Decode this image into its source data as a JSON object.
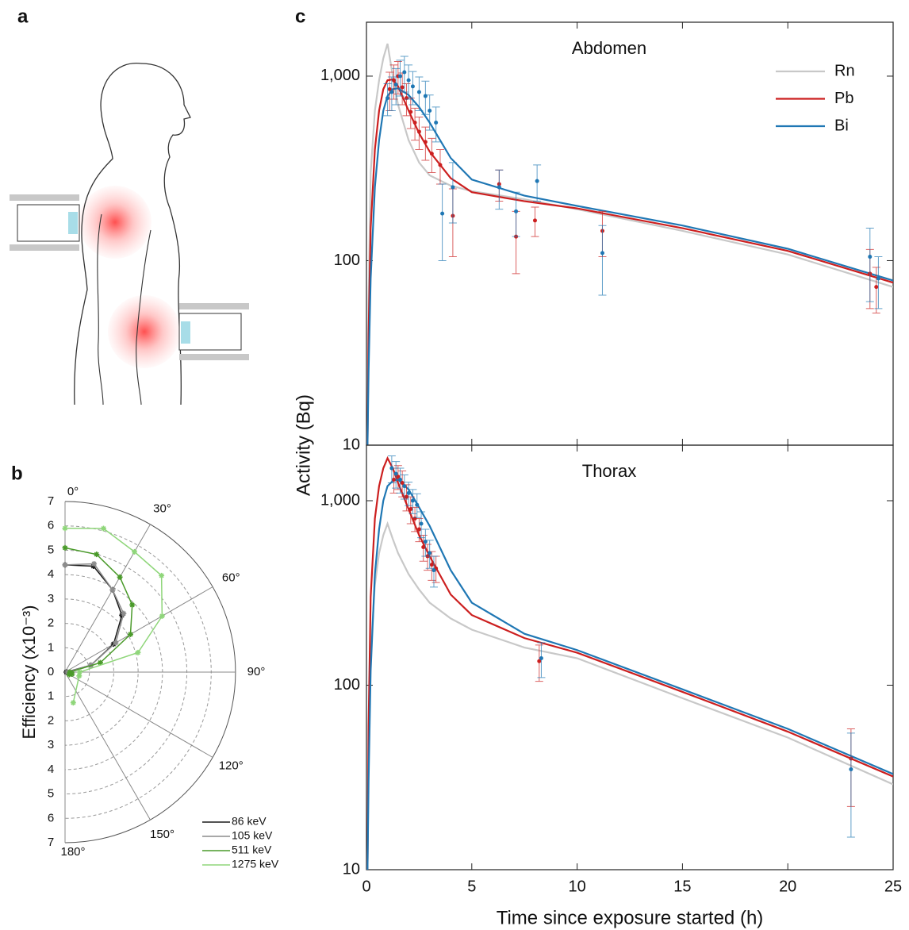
{
  "panel_labels": [
    "a",
    "b",
    "c"
  ],
  "chart_data": [
    {
      "type": "polar",
      "ylabel": "Efficiency (x10⁻³)",
      "rlim": [
        0,
        7
      ],
      "rticks": [
        0,
        1,
        2,
        3,
        4,
        5,
        6,
        7
      ],
      "thetaticks": [
        {
          "value": 0,
          "label": "0°"
        },
        {
          "value": 30,
          "label": "30°"
        },
        {
          "value": 60,
          "label": "60°"
        },
        {
          "value": 90,
          "label": "90°"
        },
        {
          "value": 120,
          "label": "120°"
        },
        {
          "value": 150,
          "label": "150°"
        },
        {
          "value": 180,
          "label": "180°"
        }
      ],
      "legend": "lower right",
      "series": [
        {
          "name": "86 keV",
          "color": "#1a1a1a",
          "theta": [
            0,
            15,
            30,
            45,
            60,
            75,
            90
          ],
          "values": [
            4.4,
            4.5,
            3.9,
            3.3,
            2.3,
            1.1,
            0.05
          ]
        },
        {
          "name": "105 keV",
          "color": "#8c8c8c",
          "theta": [
            0,
            15,
            30,
            45,
            60,
            75,
            90
          ],
          "values": [
            4.4,
            4.6,
            3.9,
            3.4,
            2.4,
            1.1,
            0.1
          ]
        },
        {
          "name": "511 keV",
          "color": "#4a9a2a",
          "theta": [
            0,
            15,
            30,
            45,
            60,
            75,
            90,
            105,
            120
          ],
          "values": [
            5.1,
            5.0,
            4.5,
            3.9,
            3.1,
            1.5,
            0.2,
            0.3,
            0.2
          ]
        },
        {
          "name": "1275 keV",
          "color": "#8fd67a",
          "theta": [
            0,
            15,
            30,
            45,
            60,
            75,
            90,
            105,
            165
          ],
          "values": [
            5.9,
            6.1,
            5.7,
            5.6,
            4.6,
            3.1,
            0.6,
            0.6,
            1.3
          ]
        }
      ]
    },
    {
      "type": "line",
      "title": "Abdomen",
      "ylabel": "Activity (Bq)",
      "log_y": true,
      "legend": "upper right",
      "xlim": [
        0,
        25
      ],
      "xticks": [
        0,
        5,
        10,
        15,
        20,
        25
      ],
      "ylim": [
        10,
        1960
      ],
      "yticks": [
        10,
        100,
        {
          "value": 1000,
          "label": "1,000"
        }
      ],
      "x": [
        0.05,
        0.1,
        0.2,
        0.4,
        0.6,
        0.8,
        1.0,
        1.25,
        1.5,
        2,
        2.5,
        3,
        4,
        5,
        7.5,
        10,
        15,
        20,
        25
      ],
      "series": [
        {
          "name": "Rn",
          "color": "#c8c8c8",
          "values": [
            10,
            60,
            300,
            650,
            950,
            1250,
            1500,
            1000,
            700,
            450,
            340,
            290,
            255,
            238,
            215,
            190,
            145,
            108,
            72
          ]
        },
        {
          "name": "Pb",
          "color": "#cc1f1f",
          "values": [
            10,
            40,
            150,
            400,
            650,
            850,
            950,
            960,
            880,
            650,
            490,
            390,
            280,
            235,
            210,
            192,
            150,
            113,
            76
          ]
        },
        {
          "name": "Bi",
          "color": "#1f77b4",
          "values": [
            10,
            25,
            80,
            250,
            450,
            650,
            780,
            850,
            860,
            790,
            680,
            560,
            360,
            275,
            225,
            198,
            155,
            116,
            78
          ]
        }
      ],
      "points": [
        {
          "color": "#cc1f1f",
          "x": [
            1.1,
            1.3,
            1.5,
            1.7,
            1.9,
            2.1,
            2.3,
            2.5,
            2.8,
            3.1,
            3.5,
            4.1,
            6.3,
            7.1,
            8.0,
            11.2,
            23.9,
            24.2
          ],
          "values": [
            850,
            950,
            1000,
            870,
            760,
            640,
            560,
            500,
            440,
            380,
            330,
            175,
            260,
            135,
            165,
            145,
            85,
            72
          ],
          "errors": [
            200,
            200,
            200,
            170,
            150,
            120,
            110,
            100,
            90,
            80,
            70,
            70,
            50,
            50,
            30,
            40,
            30,
            20
          ]
        },
        {
          "color": "#1f77b4",
          "x": [
            1.0,
            1.2,
            1.4,
            1.6,
            1.8,
            2.0,
            2.2,
            2.5,
            2.8,
            3.0,
            3.3,
            3.6,
            4.1,
            6.3,
            7.1,
            8.1,
            11.2,
            23.9,
            24.3
          ],
          "values": [
            760,
            820,
            900,
            1000,
            1050,
            950,
            880,
            820,
            780,
            650,
            560,
            180,
            250,
            250,
            185,
            270,
            110,
            105,
            80
          ],
          "errors": [
            150,
            170,
            200,
            220,
            230,
            200,
            180,
            170,
            160,
            140,
            120,
            80,
            90,
            60,
            50,
            60,
            45,
            45,
            25
          ]
        }
      ]
    },
    {
      "type": "line",
      "title": "Thorax",
      "xlabel": "Time since exposure started (h)",
      "log_y": true,
      "xlim": [
        0,
        25
      ],
      "xticks": [
        0,
        5,
        10,
        15,
        20,
        25
      ],
      "ylim": [
        10,
        2000
      ],
      "yticks": [
        10,
        100,
        {
          "value": 1000,
          "label": "1,000"
        }
      ],
      "x": [
        0.05,
        0.1,
        0.2,
        0.4,
        0.6,
        0.8,
        1.0,
        1.25,
        1.5,
        2,
        2.5,
        3,
        4,
        5,
        7.5,
        10,
        15,
        20,
        25
      ],
      "series": [
        {
          "color": "#c8c8c8",
          "values": [
            10,
            40,
            150,
            350,
            520,
            650,
            750,
            620,
            520,
            400,
            330,
            280,
            230,
            200,
            160,
            140,
            85,
            52,
            29
          ]
        },
        {
          "color": "#cc1f1f",
          "values": [
            10,
            60,
            300,
            800,
            1200,
            1500,
            1700,
            1500,
            1250,
            900,
            650,
            500,
            310,
            240,
            180,
            150,
            92,
            56,
            32
          ]
        },
        {
          "color": "#1f77b4",
          "values": [
            10,
            30,
            120,
            400,
            700,
            1000,
            1200,
            1280,
            1300,
            1150,
            920,
            730,
            420,
            280,
            190,
            155,
            95,
            58,
            33
          ]
        }
      ],
      "points": [
        {
          "color": "#cc1f1f",
          "x": [
            1.3,
            1.5,
            1.7,
            1.9,
            2.1,
            2.3,
            2.5,
            2.7,
            2.9,
            3.1,
            3.3,
            8.2,
            23.0
          ],
          "values": [
            1300,
            1350,
            1250,
            1050,
            900,
            800,
            700,
            560,
            500,
            450,
            430,
            135,
            40
          ],
          "errors": [
            200,
            200,
            200,
            170,
            150,
            120,
            100,
            90,
            80,
            80,
            70,
            30,
            18
          ]
        },
        {
          "color": "#1f77b4",
          "x": [
            1.2,
            1.4,
            1.6,
            1.8,
            2.0,
            2.2,
            2.4,
            2.6,
            2.8,
            3.0,
            3.2,
            8.3,
            23.0
          ],
          "values": [
            1500,
            1400,
            1300,
            1200,
            1100,
            1000,
            950,
            750,
            600,
            520,
            420,
            140,
            35
          ],
          "errors": [
            250,
            230,
            200,
            180,
            160,
            150,
            140,
            120,
            100,
            90,
            80,
            30,
            20
          ]
        }
      ]
    }
  ]
}
